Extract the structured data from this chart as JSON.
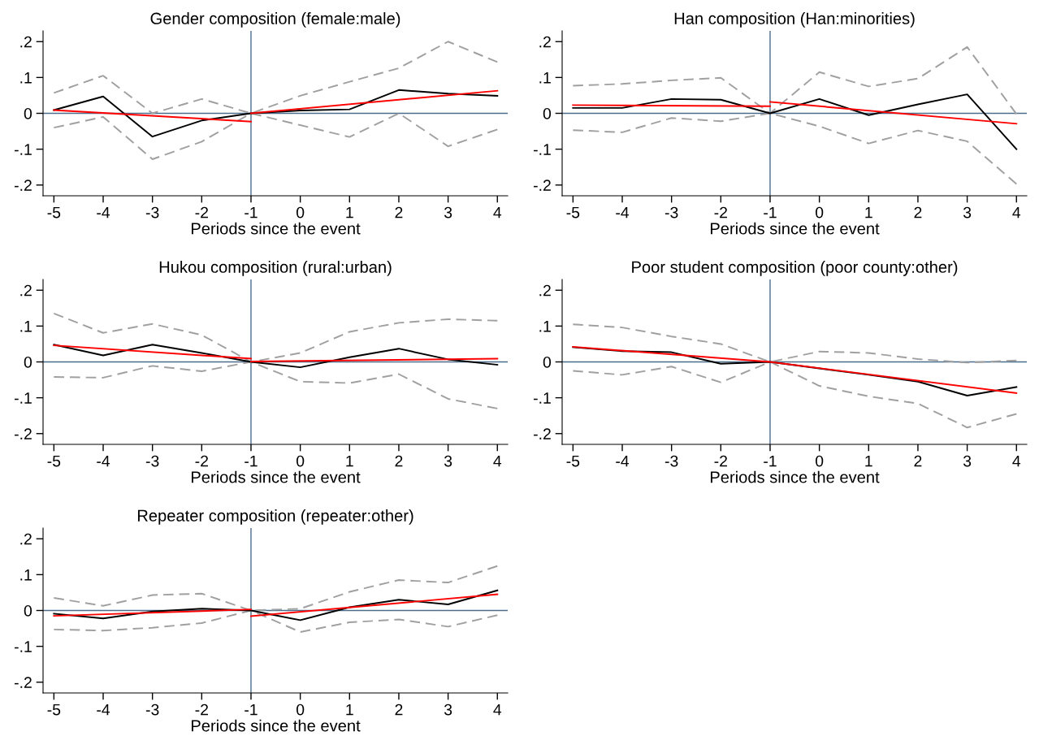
{
  "chart_data": [
    {
      "type": "line",
      "title": "Gender composition (female:male)",
      "xlabel": "Periods since the event",
      "xlim": [
        -5.22,
        4.21
      ],
      "xticks": [
        -5,
        -4,
        -3,
        -2,
        -1,
        0,
        1,
        2,
        3,
        4
      ],
      "ylim": [
        -0.23,
        0.23
      ],
      "yticks": [
        {
          "value": -0.2,
          "label": "-.2"
        },
        {
          "value": -0.1,
          "label": "-.1"
        },
        0,
        {
          "value": 0.1,
          "label": ".1"
        },
        {
          "value": 0.2,
          "label": ".2"
        }
      ],
      "grid": false,
      "ref_lines": [
        {
          "axis": "y",
          "value": 0,
          "color": "#4c6c8c"
        },
        {
          "axis": "x",
          "value": -1,
          "color": "#4c6c8c"
        }
      ],
      "series": [
        {
          "color": "#a0a0a0",
          "line_style": "dashed",
          "x": [
            -5,
            -4,
            -3,
            -2,
            -1,
            0,
            1,
            2,
            3,
            4
          ],
          "values": [
            0.057,
            0.105,
            0,
            0.04,
            0,
            0.049,
            0.088,
            0.126,
            0.2,
            0.143
          ]
        },
        {
          "color": "#a0a0a0",
          "line_style": "dashed",
          "x": [
            -5,
            -4,
            -3,
            -2,
            -1,
            0,
            1,
            2,
            3,
            4
          ],
          "values": [
            -0.04,
            -0.01,
            -0.128,
            -0.079,
            0,
            -0.033,
            -0.066,
            0,
            -0.092,
            -0.045
          ]
        },
        {
          "color": "#000000",
          "line_style": "solid",
          "x": [
            -5,
            -4,
            -3,
            -2,
            -1,
            0,
            1,
            2,
            3,
            4
          ],
          "values": [
            0.009,
            0.047,
            -0.065,
            -0.02,
            0,
            0.008,
            0.011,
            0.065,
            0.055,
            0.049
          ]
        },
        {
          "color": "#ff0000",
          "line_style": "solid",
          "x": [
            -5,
            -1
          ],
          "values": [
            0.009,
            -0.023
          ]
        },
        {
          "color": "#ff0000",
          "line_style": "solid",
          "x": [
            -1,
            4
          ],
          "values": [
            0,
            0.063
          ]
        }
      ]
    },
    {
      "type": "line",
      "title": "Han composition (Han:minorities)",
      "xlabel": "Periods since the event",
      "xlim": [
        -5.22,
        4.21
      ],
      "xticks": [
        -5,
        -4,
        -3,
        -2,
        -1,
        0,
        1,
        2,
        3,
        4
      ],
      "ylim": [
        -0.23,
        0.23
      ],
      "yticks": [
        {
          "value": -0.2,
          "label": "-.2"
        },
        {
          "value": -0.1,
          "label": "-.1"
        },
        0,
        {
          "value": 0.1,
          "label": ".1"
        },
        {
          "value": 0.2,
          "label": ".2"
        }
      ],
      "grid": false,
      "ref_lines": [
        {
          "axis": "y",
          "value": 0,
          "color": "#4c6c8c"
        },
        {
          "axis": "x",
          "value": -1,
          "color": "#4c6c8c"
        }
      ],
      "series": [
        {
          "color": "#a0a0a0",
          "line_style": "dashed",
          "x": [
            -5,
            -4,
            -3,
            -2,
            -1,
            0,
            1,
            2,
            3,
            4
          ],
          "values": [
            0.077,
            0.082,
            0.092,
            0.099,
            0,
            0.115,
            0.075,
            0.097,
            0.185,
            -0.002
          ]
        },
        {
          "color": "#a0a0a0",
          "line_style": "dashed",
          "x": [
            -5,
            -4,
            -3,
            -2,
            -1,
            0,
            1,
            2,
            3,
            4
          ],
          "values": [
            -0.047,
            -0.053,
            -0.013,
            -0.022,
            0,
            -0.036,
            -0.084,
            -0.048,
            -0.078,
            -0.197
          ]
        },
        {
          "color": "#000000",
          "line_style": "solid",
          "x": [
            -5,
            -4,
            -3,
            -2,
            -1,
            0,
            1,
            2,
            3,
            4
          ],
          "values": [
            0.015,
            0.015,
            0.04,
            0.038,
            0,
            0.04,
            -0.005,
            0.025,
            0.053,
            -0.1
          ]
        },
        {
          "color": "#ff0000",
          "line_style": "solid",
          "x": [
            -5,
            -1
          ],
          "values": [
            0.023,
            0.02
          ]
        },
        {
          "color": "#ff0000",
          "line_style": "solid",
          "x": [
            -1,
            4
          ],
          "values": [
            0.032,
            -0.029
          ]
        }
      ]
    },
    {
      "type": "line",
      "title": "Hukou composition (rural:urban)",
      "xlabel": "Periods since the event",
      "xlim": [
        -5.22,
        4.21
      ],
      "xticks": [
        -5,
        -4,
        -3,
        -2,
        -1,
        0,
        1,
        2,
        3,
        4
      ],
      "ylim": [
        -0.23,
        0.23
      ],
      "yticks": [
        {
          "value": -0.2,
          "label": "-.2"
        },
        {
          "value": -0.1,
          "label": "-.1"
        },
        0,
        {
          "value": 0.1,
          "label": ".1"
        },
        {
          "value": 0.2,
          "label": ".2"
        }
      ],
      "grid": false,
      "ref_lines": [
        {
          "axis": "y",
          "value": 0,
          "color": "#4c6c8c"
        },
        {
          "axis": "x",
          "value": -1,
          "color": "#4c6c8c"
        }
      ],
      "series": [
        {
          "color": "#a0a0a0",
          "line_style": "dashed",
          "x": [
            -5,
            -4,
            -3,
            -2,
            -1,
            0,
            1,
            2,
            3,
            4
          ],
          "values": [
            0.135,
            0.081,
            0.106,
            0.075,
            0,
            0.025,
            0.084,
            0.109,
            0.119,
            0.115
          ]
        },
        {
          "color": "#a0a0a0",
          "line_style": "dashed",
          "x": [
            -5,
            -4,
            -3,
            -2,
            -1,
            0,
            1,
            2,
            3,
            4
          ],
          "values": [
            -0.042,
            -0.044,
            -0.011,
            -0.026,
            0,
            -0.055,
            -0.059,
            -0.034,
            -0.103,
            -0.13
          ]
        },
        {
          "color": "#000000",
          "line_style": "solid",
          "x": [
            -5,
            -4,
            -3,
            -2,
            -1,
            0,
            1,
            2,
            3,
            4
          ],
          "values": [
            0.048,
            0.018,
            0.048,
            0.025,
            0,
            -0.015,
            0.013,
            0.037,
            0.007,
            -0.008
          ]
        },
        {
          "color": "#ff0000",
          "line_style": "solid",
          "x": [
            -5,
            -1
          ],
          "values": [
            0.046,
            0.009
          ]
        },
        {
          "color": "#ff0000",
          "line_style": "solid",
          "x": [
            -1,
            4
          ],
          "values": [
            0.001,
            0.009
          ]
        }
      ]
    },
    {
      "type": "line",
      "title": "Poor student composition (poor county:other)",
      "xlabel": "Periods since the event",
      "xlim": [
        -5.22,
        4.21
      ],
      "xticks": [
        -5,
        -4,
        -3,
        -2,
        -1,
        0,
        1,
        2,
        3,
        4
      ],
      "ylim": [
        -0.23,
        0.23
      ],
      "yticks": [
        {
          "value": -0.2,
          "label": "-.2"
        },
        {
          "value": -0.1,
          "label": "-.1"
        },
        0,
        {
          "value": 0.1,
          "label": ".1"
        },
        {
          "value": 0.2,
          "label": ".2"
        }
      ],
      "grid": false,
      "ref_lines": [
        {
          "axis": "y",
          "value": 0,
          "color": "#4c6c8c"
        },
        {
          "axis": "x",
          "value": -1,
          "color": "#4c6c8c"
        }
      ],
      "series": [
        {
          "color": "#a0a0a0",
          "line_style": "dashed",
          "x": [
            -5,
            -4,
            -3,
            -2,
            -1,
            0,
            1,
            2,
            3,
            4
          ],
          "values": [
            0.105,
            0.096,
            0.071,
            0.05,
            0,
            0.029,
            0.025,
            0.008,
            -0.002,
            0.004
          ]
        },
        {
          "color": "#a0a0a0",
          "line_style": "dashed",
          "x": [
            -5,
            -4,
            -3,
            -2,
            -1,
            0,
            1,
            2,
            3,
            4
          ],
          "values": [
            -0.025,
            -0.036,
            -0.013,
            -0.057,
            0,
            -0.067,
            -0.096,
            -0.116,
            -0.183,
            -0.145
          ]
        },
        {
          "color": "#000000",
          "line_style": "solid",
          "x": [
            -5,
            -4,
            -3,
            -2,
            -1,
            0,
            1,
            2,
            3,
            4
          ],
          "values": [
            0.041,
            0.03,
            0.027,
            -0.005,
            0,
            -0.018,
            -0.036,
            -0.055,
            -0.094,
            -0.07
          ]
        },
        {
          "color": "#ff0000",
          "line_style": "solid",
          "x": [
            -5,
            -1,
            4
          ],
          "values": [
            0.042,
            0,
            -0.087
          ]
        }
      ]
    },
    {
      "type": "line",
      "title": "Repeater composition (repeater:other)",
      "xlabel": "Periods since the event",
      "xlim": [
        -5.22,
        4.21
      ],
      "xticks": [
        -5,
        -4,
        -3,
        -2,
        -1,
        0,
        1,
        2,
        3,
        4
      ],
      "ylim": [
        -0.23,
        0.23
      ],
      "yticks": [
        {
          "value": -0.2,
          "label": "-.2"
        },
        {
          "value": -0.1,
          "label": "-.1"
        },
        0,
        {
          "value": 0.1,
          "label": ".1"
        },
        {
          "value": 0.2,
          "label": ".2"
        }
      ],
      "grid": false,
      "ref_lines": [
        {
          "axis": "y",
          "value": 0,
          "color": "#4c6c8c"
        },
        {
          "axis": "x",
          "value": -1,
          "color": "#4c6c8c"
        }
      ],
      "series": [
        {
          "color": "#a0a0a0",
          "line_style": "dashed",
          "x": [
            -5,
            -4,
            -3,
            -2,
            -1,
            0,
            1,
            2,
            3,
            4
          ],
          "values": [
            0.035,
            0.013,
            0.043,
            0.047,
            0,
            0.005,
            0.052,
            0.085,
            0.078,
            0.124
          ]
        },
        {
          "color": "#a0a0a0",
          "line_style": "dashed",
          "x": [
            -5,
            -4,
            -3,
            -2,
            -1,
            0,
            1,
            2,
            3,
            4
          ],
          "values": [
            -0.053,
            -0.056,
            -0.048,
            -0.035,
            0,
            -0.06,
            -0.033,
            -0.025,
            -0.045,
            -0.013
          ]
        },
        {
          "color": "#000000",
          "line_style": "solid",
          "x": [
            -5,
            -4,
            -3,
            -2,
            -1,
            0,
            1,
            2,
            3,
            4
          ],
          "values": [
            -0.009,
            -0.022,
            -0.003,
            0.005,
            0,
            -0.027,
            0.009,
            0.03,
            0.017,
            0.056
          ]
        },
        {
          "color": "#ff0000",
          "line_style": "solid",
          "x": [
            -5,
            -1
          ],
          "values": [
            -0.015,
            0.003
          ]
        },
        {
          "color": "#ff0000",
          "line_style": "solid",
          "x": [
            -1,
            4
          ],
          "values": [
            -0.016,
            0.045
          ]
        }
      ]
    }
  ]
}
